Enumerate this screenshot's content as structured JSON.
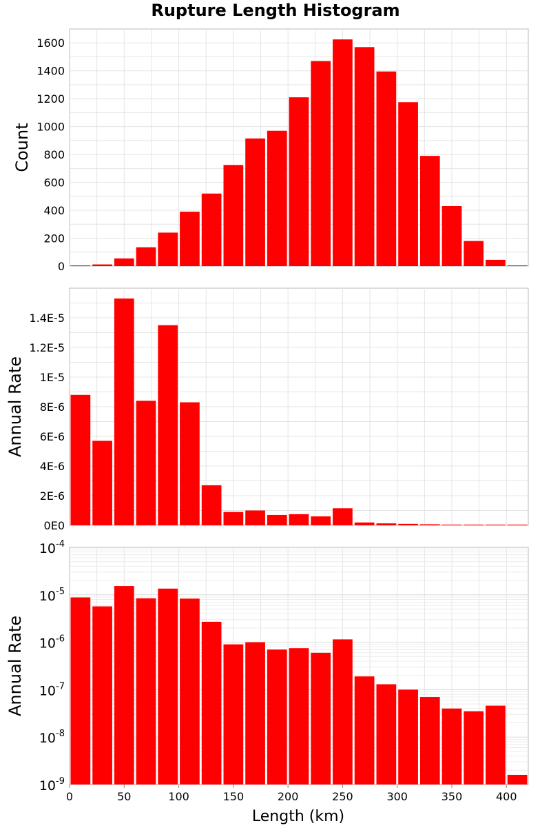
{
  "chart_data": {
    "type": "bar",
    "title": "Rupture Length Histogram",
    "xlabel": "Length (km)",
    "xlim": [
      0,
      420
    ],
    "x_ticks": [
      "0",
      "50",
      "100",
      "150",
      "200",
      "250",
      "300",
      "350",
      "400"
    ],
    "bar_color": "#ff0000",
    "grid": true,
    "bin_centers": [
      10,
      30,
      50,
      70,
      90,
      110,
      130,
      150,
      170,
      190,
      210,
      230,
      250,
      270,
      290,
      310,
      330,
      350,
      370,
      390,
      410
    ],
    "panels": [
      {
        "id": "count",
        "ylabel": "Count",
        "yscale": "linear",
        "ylim": [
          0,
          1700
        ],
        "y_ticks": [
          "0",
          "200",
          "400",
          "600",
          "800",
          "1000",
          "1200",
          "1400",
          "1600"
        ],
        "values": [
          2,
          12,
          55,
          135,
          240,
          390,
          520,
          725,
          915,
          970,
          1210,
          1470,
          1625,
          1570,
          1395,
          1175,
          790,
          430,
          180,
          45,
          2
        ]
      },
      {
        "id": "rate-linear",
        "ylabel": "Annual Rate",
        "yscale": "linear",
        "ylim": [
          0,
          1.6e-05
        ],
        "y_ticks": [
          "0E0",
          "2E-6",
          "4E-6",
          "6E-6",
          "8E-6",
          "1E-5",
          "1.2E-5",
          "1.4E-5"
        ],
        "values": [
          8.8e-06,
          5.7e-06,
          1.53e-05,
          8.4e-06,
          1.35e-05,
          8.3e-06,
          2.7e-06,
          9e-07,
          1e-06,
          7e-07,
          7.5e-07,
          6e-07,
          1.15e-06,
          1.9e-07,
          1.3e-07,
          1e-07,
          7e-08,
          4e-08,
          3.5e-08,
          4.6e-08,
          1.6e-09
        ]
      },
      {
        "id": "rate-log",
        "ylabel": "Annual Rate",
        "yscale": "log",
        "ylim": [
          1e-09,
          0.0001
        ],
        "y_ticks": [
          {
            "base": "10",
            "exp": "-9"
          },
          {
            "base": "10",
            "exp": "-8"
          },
          {
            "base": "10",
            "exp": "-7"
          },
          {
            "base": "10",
            "exp": "-6"
          },
          {
            "base": "10",
            "exp": "-5"
          },
          {
            "base": "10",
            "exp": "-4"
          }
        ],
        "values": [
          8.8e-06,
          5.7e-06,
          1.53e-05,
          8.4e-06,
          1.35e-05,
          8.3e-06,
          2.7e-06,
          9e-07,
          1e-06,
          7e-07,
          7.5e-07,
          6e-07,
          1.15e-06,
          1.9e-07,
          1.3e-07,
          1e-07,
          7e-08,
          4e-08,
          3.5e-08,
          4.6e-08,
          1.6e-09
        ]
      }
    ]
  }
}
